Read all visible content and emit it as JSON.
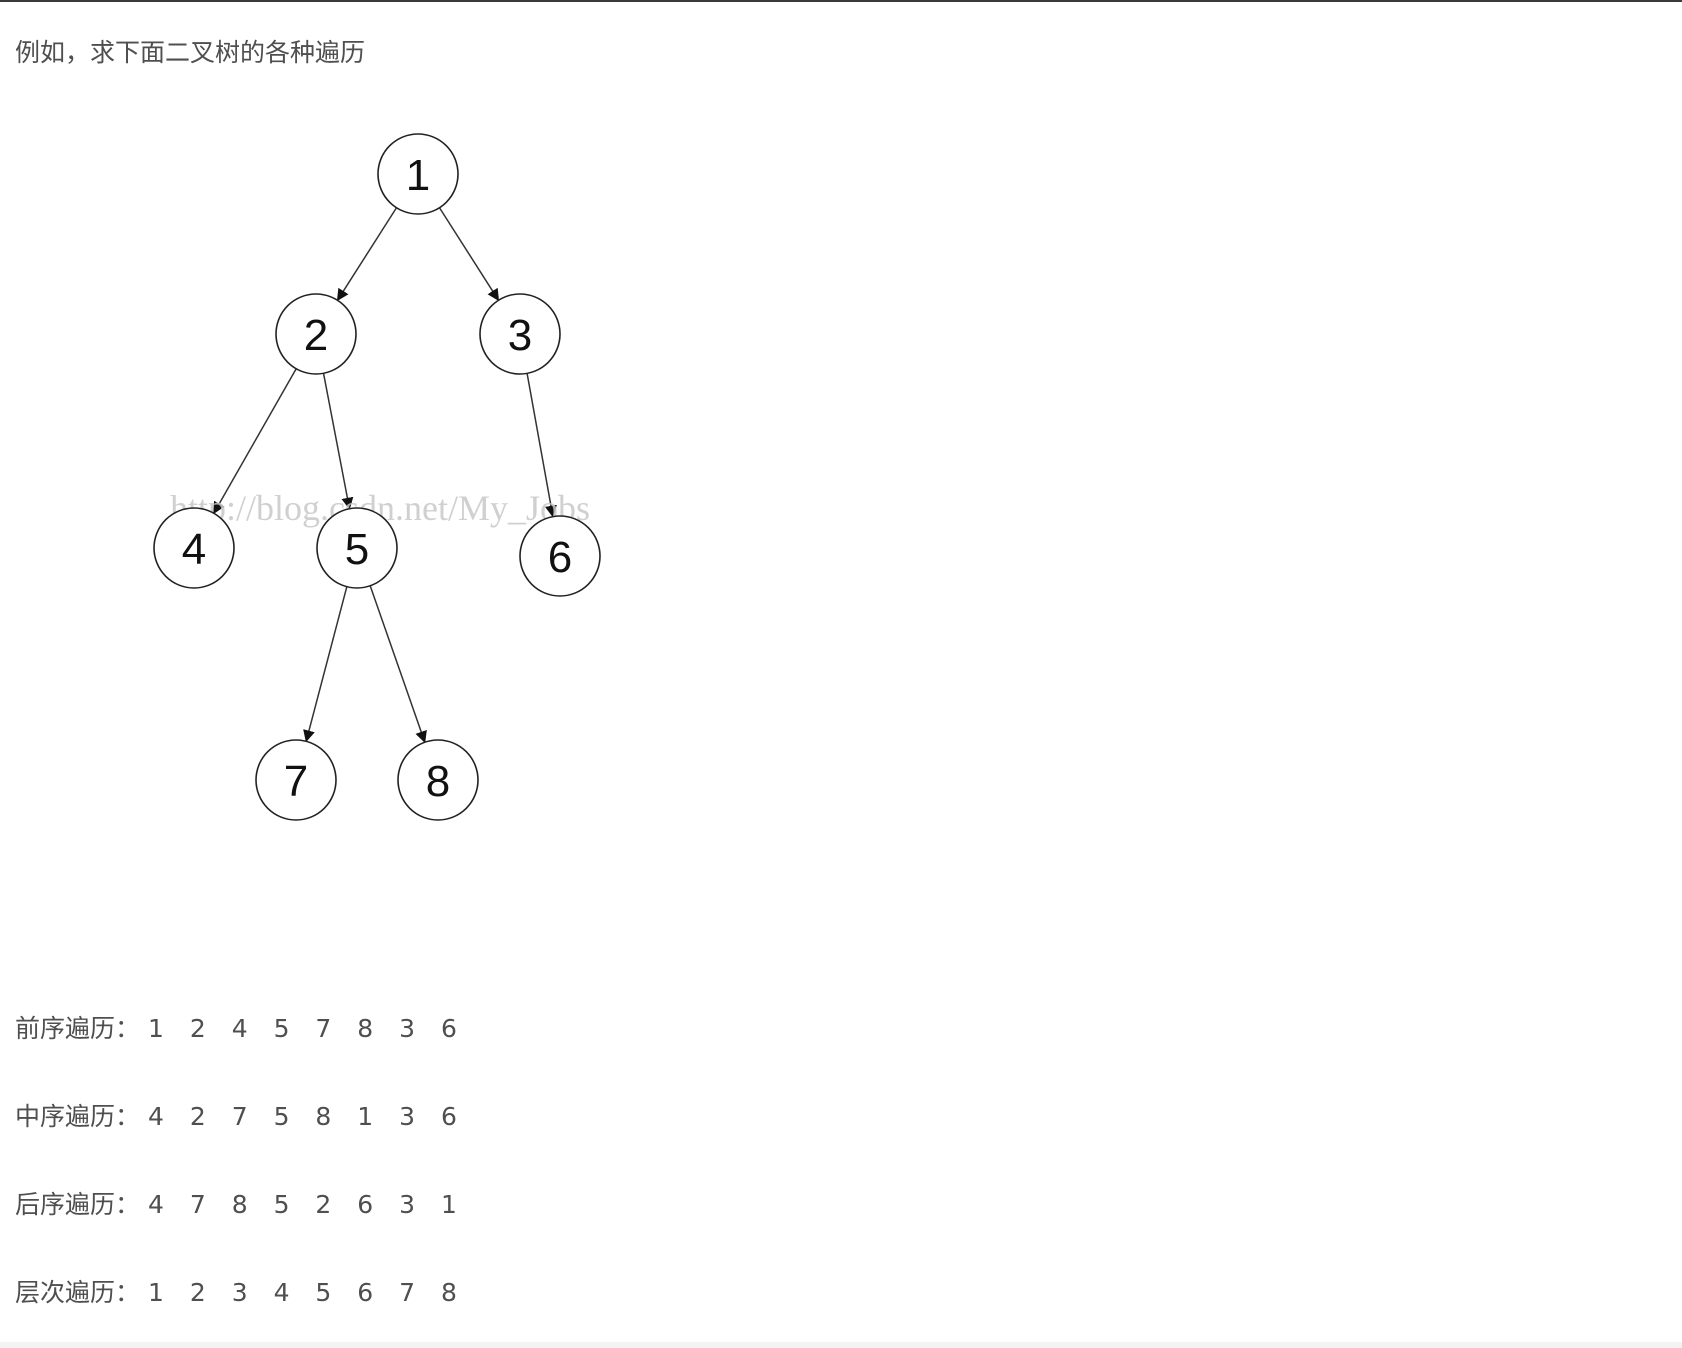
{
  "intro": "例如，求下面二叉树的各种遍历",
  "tree": {
    "nodes": [
      {
        "id": "1",
        "label": "1"
      },
      {
        "id": "2",
        "label": "2"
      },
      {
        "id": "3",
        "label": "3"
      },
      {
        "id": "4",
        "label": "4"
      },
      {
        "id": "5",
        "label": "5"
      },
      {
        "id": "6",
        "label": "6"
      },
      {
        "id": "7",
        "label": "7"
      },
      {
        "id": "8",
        "label": "8"
      }
    ],
    "edges": [
      [
        "1",
        "2"
      ],
      [
        "1",
        "3"
      ],
      [
        "2",
        "4"
      ],
      [
        "2",
        "5"
      ],
      [
        "3",
        "6"
      ],
      [
        "5",
        "7"
      ],
      [
        "5",
        "8"
      ]
    ],
    "watermark": "http://blog.csdn.net/My_Jobs"
  },
  "traversals": [
    {
      "label": "前序遍历：",
      "sequence": "1 2 4 5 7 8 3 6"
    },
    {
      "label": "中序遍历：",
      "sequence": "4 2 7 5 8 1 3 6"
    },
    {
      "label": "后序遍历：",
      "sequence": "4 7 8 5 2 6 3 1"
    },
    {
      "label": "层次遍历：",
      "sequence": "1 2 3 4 5 6 7 8"
    }
  ]
}
